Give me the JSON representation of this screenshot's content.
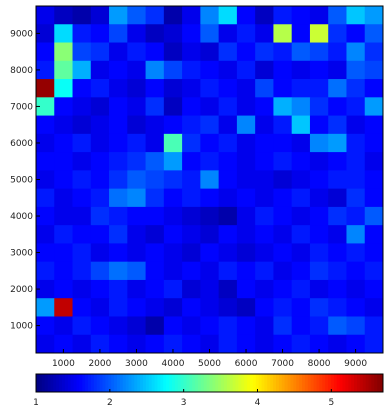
{
  "chart_data": {
    "type": "heatmap",
    "x_ticks": [
      1000,
      2000,
      3000,
      4000,
      5000,
      6000,
      7000,
      8000,
      9000
    ],
    "y_ticks": [
      1000,
      2000,
      3000,
      4000,
      5000,
      6000,
      7000,
      8000,
      9000
    ],
    "xlim": [
      250,
      9750
    ],
    "ylim": [
      250,
      9750
    ],
    "cell_size": 500,
    "rows_top_to_bottom_y_centers": [
      9500,
      9000,
      8500,
      8000,
      7500,
      7000,
      6500,
      6000,
      5500,
      5000,
      4500,
      4000,
      3500,
      3000,
      2500,
      2000,
      1500,
      1000,
      500
    ],
    "columns_x_centers": [
      500,
      1000,
      1500,
      2000,
      2500,
      3000,
      3500,
      4000,
      4500,
      5000,
      5500,
      6000,
      6500,
      7000,
      7500,
      8000,
      8500,
      9000,
      9500
    ],
    "values": [
      [
        1.5,
        1.3,
        1.2,
        1.4,
        2.3,
        2.0,
        1.8,
        1.2,
        1.5,
        2.2,
        2.6,
        1.6,
        1.3,
        1.7,
        1.6,
        1.5,
        2.0,
        2.5,
        2.3
      ],
      [
        1.4,
        2.6,
        1.7,
        1.6,
        1.9,
        1.5,
        1.3,
        1.4,
        1.6,
        2.0,
        1.5,
        1.7,
        1.5,
        3.6,
        1.6,
        3.7,
        1.8,
        1.6,
        2.0
      ],
      [
        1.6,
        3.4,
        1.9,
        1.8,
        1.5,
        1.7,
        1.6,
        1.3,
        1.5,
        1.4,
        1.8,
        1.6,
        1.8,
        1.7,
        2.0,
        1.9,
        1.7,
        2.2,
        1.8
      ],
      [
        1.7,
        3.2,
        2.4,
        1.5,
        1.6,
        1.5,
        2.2,
        1.9,
        1.7,
        1.6,
        1.5,
        1.7,
        1.4,
        1.6,
        1.5,
        1.6,
        1.5,
        2.0,
        1.9
      ],
      [
        5.6,
        2.8,
        1.6,
        1.7,
        1.5,
        1.4,
        1.6,
        1.4,
        1.5,
        1.7,
        1.6,
        1.5,
        1.9,
        1.6,
        1.7,
        1.7,
        2.1,
        1.8,
        1.6
      ],
      [
        3.0,
        1.6,
        1.5,
        1.4,
        1.6,
        1.5,
        1.8,
        1.3,
        1.6,
        1.5,
        1.7,
        1.5,
        1.6,
        2.4,
        2.2,
        1.8,
        1.6,
        1.7,
        2.3
      ],
      [
        1.6,
        1.5,
        1.4,
        1.5,
        1.6,
        1.4,
        1.5,
        1.6,
        1.7,
        1.8,
        1.5,
        2.2,
        1.5,
        1.7,
        2.5,
        1.6,
        1.8,
        1.5,
        1.6
      ],
      [
        1.5,
        1.6,
        1.7,
        1.5,
        1.6,
        1.7,
        1.5,
        3.1,
        1.8,
        1.6,
        1.7,
        1.5,
        1.6,
        1.6,
        1.5,
        2.2,
        2.3,
        1.7,
        1.6
      ],
      [
        1.6,
        1.6,
        1.5,
        1.6,
        1.7,
        1.8,
        2.0,
        2.3,
        1.6,
        1.7,
        1.6,
        1.5,
        1.6,
        1.7,
        1.6,
        1.5,
        1.6,
        1.7,
        1.5
      ],
      [
        1.5,
        1.6,
        1.7,
        1.6,
        1.8,
        2.0,
        1.9,
        1.8,
        1.7,
        2.2,
        1.6,
        1.5,
        1.5,
        1.4,
        1.5,
        1.6,
        1.7,
        1.7,
        1.6
      ],
      [
        1.7,
        1.5,
        1.6,
        1.7,
        2.1,
        2.2,
        1.8,
        1.6,
        1.7,
        1.6,
        1.5,
        1.6,
        1.5,
        1.6,
        1.7,
        1.5,
        1.4,
        1.8,
        1.6
      ],
      [
        1.6,
        1.5,
        1.5,
        1.8,
        1.7,
        1.6,
        1.6,
        1.5,
        1.4,
        1.3,
        1.2,
        1.5,
        1.7,
        1.6,
        1.5,
        1.6,
        1.8,
        1.7,
        2.0
      ],
      [
        1.5,
        1.7,
        1.6,
        1.6,
        1.8,
        1.5,
        1.4,
        1.6,
        1.5,
        1.4,
        1.6,
        1.5,
        1.6,
        1.5,
        1.7,
        1.6,
        1.5,
        2.2,
        1.6
      ],
      [
        1.6,
        1.6,
        1.7,
        1.5,
        1.6,
        1.5,
        1.6,
        1.5,
        1.4,
        1.6,
        1.5,
        1.4,
        1.5,
        1.6,
        1.5,
        1.7,
        1.6,
        1.7,
        1.6
      ],
      [
        1.7,
        1.6,
        1.7,
        1.9,
        2.1,
        2.0,
        1.6,
        1.5,
        1.6,
        1.5,
        1.7,
        1.6,
        1.7,
        1.5,
        1.6,
        1.8,
        1.7,
        1.6,
        1.7
      ],
      [
        1.5,
        1.6,
        1.5,
        1.6,
        1.7,
        1.5,
        1.6,
        1.7,
        1.4,
        1.5,
        1.3,
        1.6,
        1.5,
        1.6,
        1.7,
        1.5,
        1.6,
        1.5,
        1.6
      ],
      [
        2.3,
        5.4,
        1.6,
        1.5,
        1.7,
        1.6,
        1.5,
        1.4,
        1.6,
        1.5,
        1.4,
        1.3,
        1.6,
        1.7,
        1.6,
        1.8,
        1.7,
        1.6,
        1.5
      ],
      [
        1.6,
        1.5,
        1.7,
        1.6,
        1.5,
        1.4,
        1.2,
        1.6,
        1.5,
        1.6,
        1.7,
        1.6,
        1.5,
        1.8,
        1.6,
        1.7,
        2.0,
        1.9,
        1.7
      ],
      [
        1.5,
        1.6,
        1.5,
        1.7,
        1.6,
        1.5,
        1.6,
        1.7,
        1.6,
        1.5,
        1.7,
        1.6,
        1.5,
        1.6,
        1.7,
        1.6,
        1.5,
        1.6,
        1.7
      ]
    ],
    "colormap": "jet",
    "colorbar": {
      "range": [
        1,
        5.7
      ],
      "ticks": [
        1,
        2,
        3,
        4,
        5
      ],
      "orientation": "horizontal",
      "placement": "bottom"
    },
    "grid": false
  }
}
